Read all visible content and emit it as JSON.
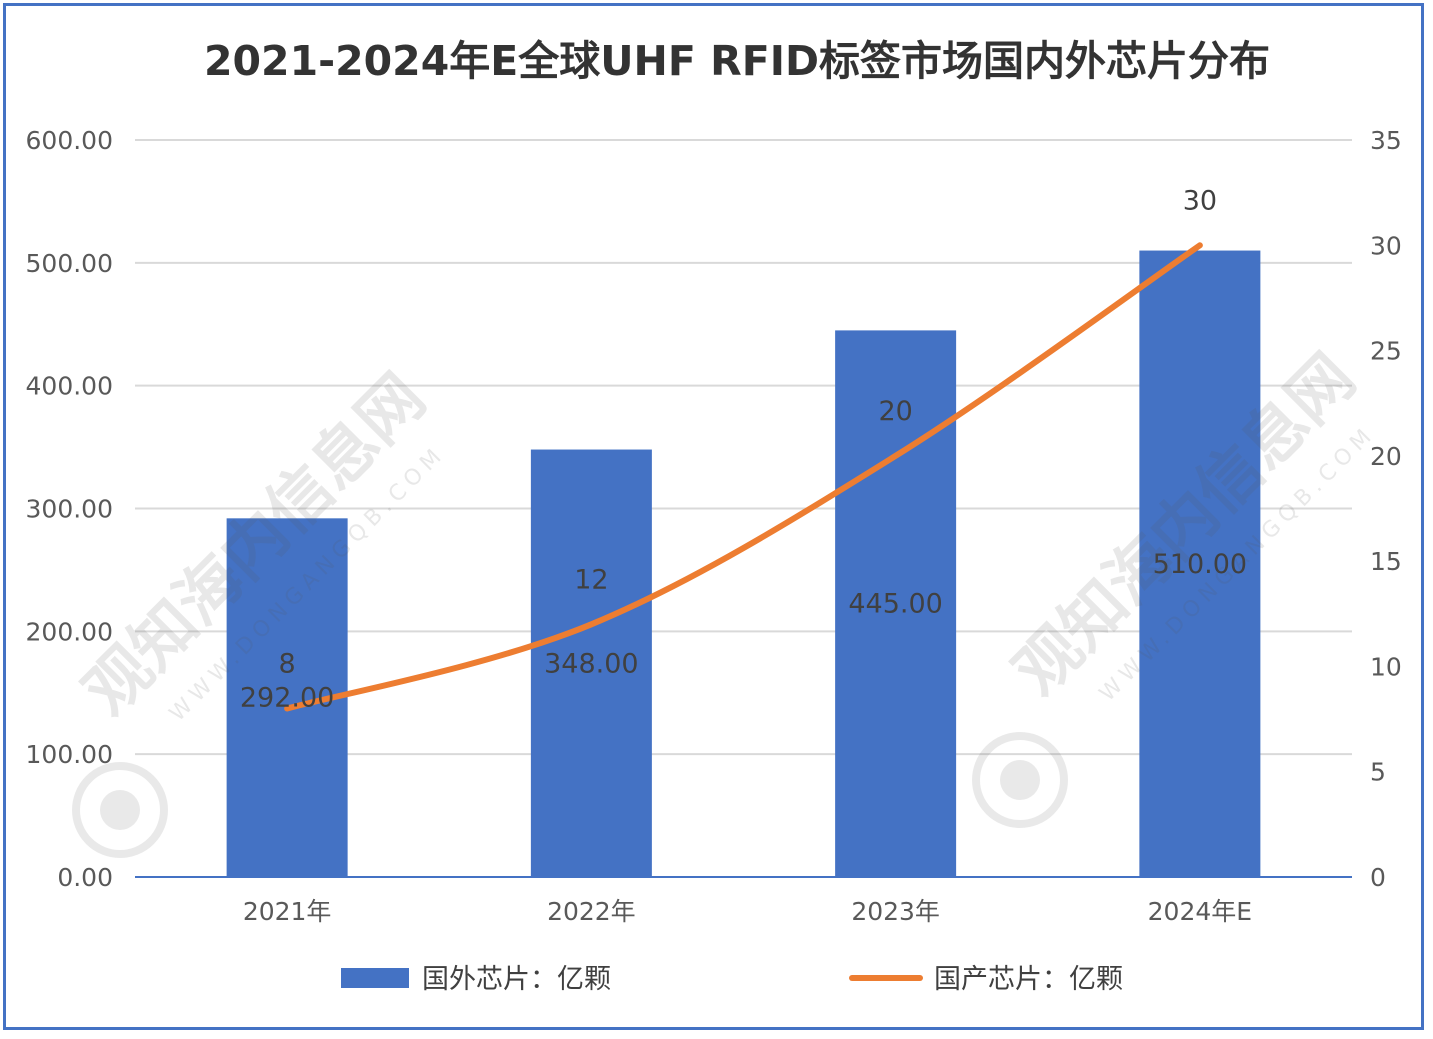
{
  "chart_data": {
    "type": "bar",
    "title": "2021-2024年E全球UHF RFID标签市场国内外芯片分布",
    "categories": [
      "2021年",
      "2022年",
      "2023年",
      "2024年E"
    ],
    "series": [
      {
        "name": "国外芯片：亿颗",
        "type": "bar",
        "axis": "left",
        "color": "#4472C4",
        "values": [
          292.0,
          348.0,
          445.0,
          510.0
        ],
        "labels": [
          "292.00",
          "348.00",
          "445.00",
          "510.00"
        ]
      },
      {
        "name": "国产芯片：亿颗",
        "type": "line",
        "axis": "right",
        "color": "#ED7D31",
        "values": [
          8,
          12,
          20,
          30
        ],
        "labels": [
          "8",
          "12",
          "20",
          "30"
        ]
      }
    ],
    "y_left": {
      "ylim": [
        0,
        600
      ],
      "ticks": [
        "0.00",
        "100.00",
        "200.00",
        "300.00",
        "400.00",
        "500.00",
        "600.00"
      ]
    },
    "y_right": {
      "ylim": [
        0,
        35
      ],
      "ticks": [
        "0",
        "5",
        "10",
        "15",
        "20",
        "25",
        "30",
        "35"
      ]
    },
    "grid": true,
    "legend": "bottom"
  },
  "watermark": {
    "text": "观知海内信息网",
    "url": "WWW.DONGANGQB.COM"
  }
}
